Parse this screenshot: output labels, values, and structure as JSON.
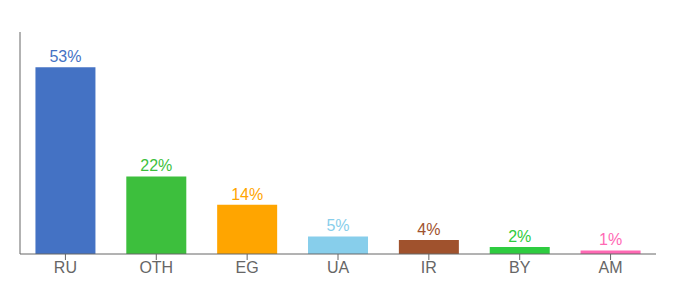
{
  "chart_data": {
    "type": "bar",
    "categories": [
      "RU",
      "OTH",
      "EG",
      "UA",
      "IR",
      "BY",
      "AM"
    ],
    "values": [
      53,
      22,
      14,
      5,
      4,
      2,
      1
    ],
    "value_labels": [
      "53%",
      "22%",
      "14%",
      "5%",
      "4%",
      "2%",
      "1%"
    ],
    "colors": [
      "#4472C4",
      "#3DBF3D",
      "#FFA500",
      "#87CEEB",
      "#A0522D",
      "#2ECC40",
      "#FF69B4"
    ],
    "ylim": [
      0,
      63
    ],
    "data_labels": true,
    "tick_labels": "x"
  }
}
